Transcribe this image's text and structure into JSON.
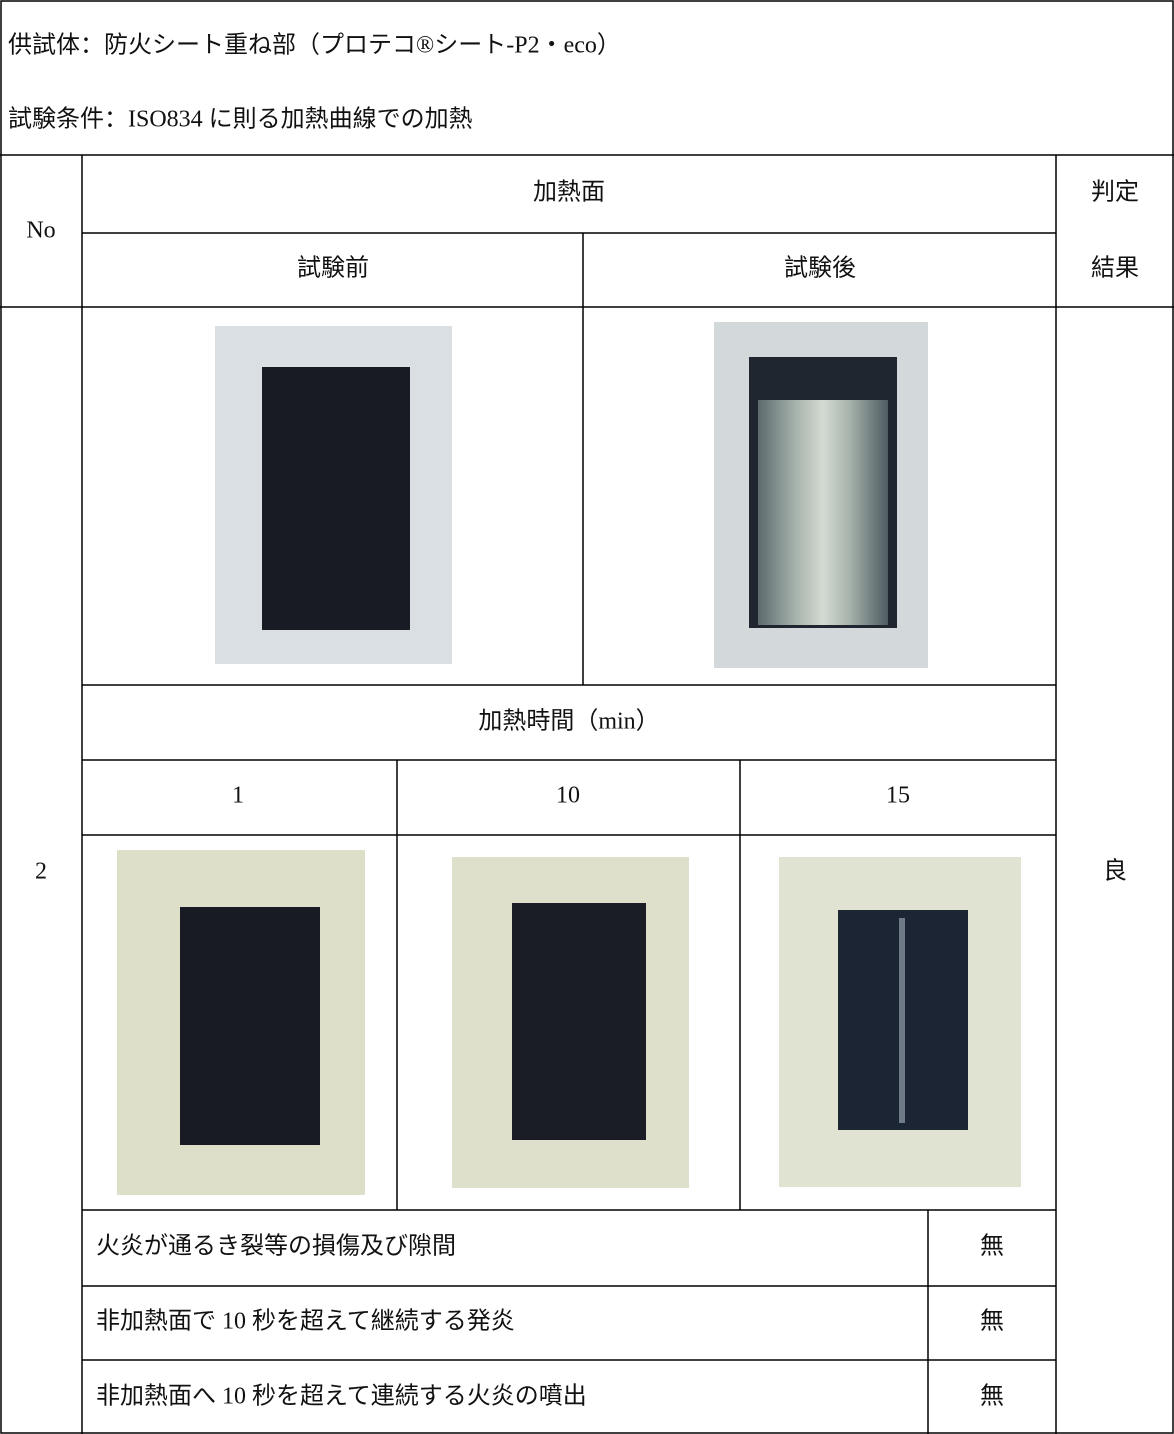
{
  "header": {
    "specimen": "供試体：防火シート重ね部（プロテコ®シート-P2・eco）",
    "condition": "試験条件：ISO834 に則る加熱曲線での加熱"
  },
  "table": {
    "no_header": "No",
    "heating_surface": "加熱面",
    "judgment_header": [
      "判定",
      "結果"
    ],
    "before": "試験前",
    "after": "試験後",
    "heating_time": "加熱時間（min）",
    "times": [
      1,
      10,
      15
    ],
    "no": 2,
    "verdict": "良",
    "criteria": [
      {
        "item": "火炎が通るき裂等の損傷及び隙間",
        "result": "無"
      },
      {
        "item": "非加熱面で 10 秒を超えて継続する発炎",
        "result": "無"
      },
      {
        "item": "非加熱面へ 10 秒を超えて連続する火炎の噴出",
        "result": "無"
      }
    ]
  }
}
